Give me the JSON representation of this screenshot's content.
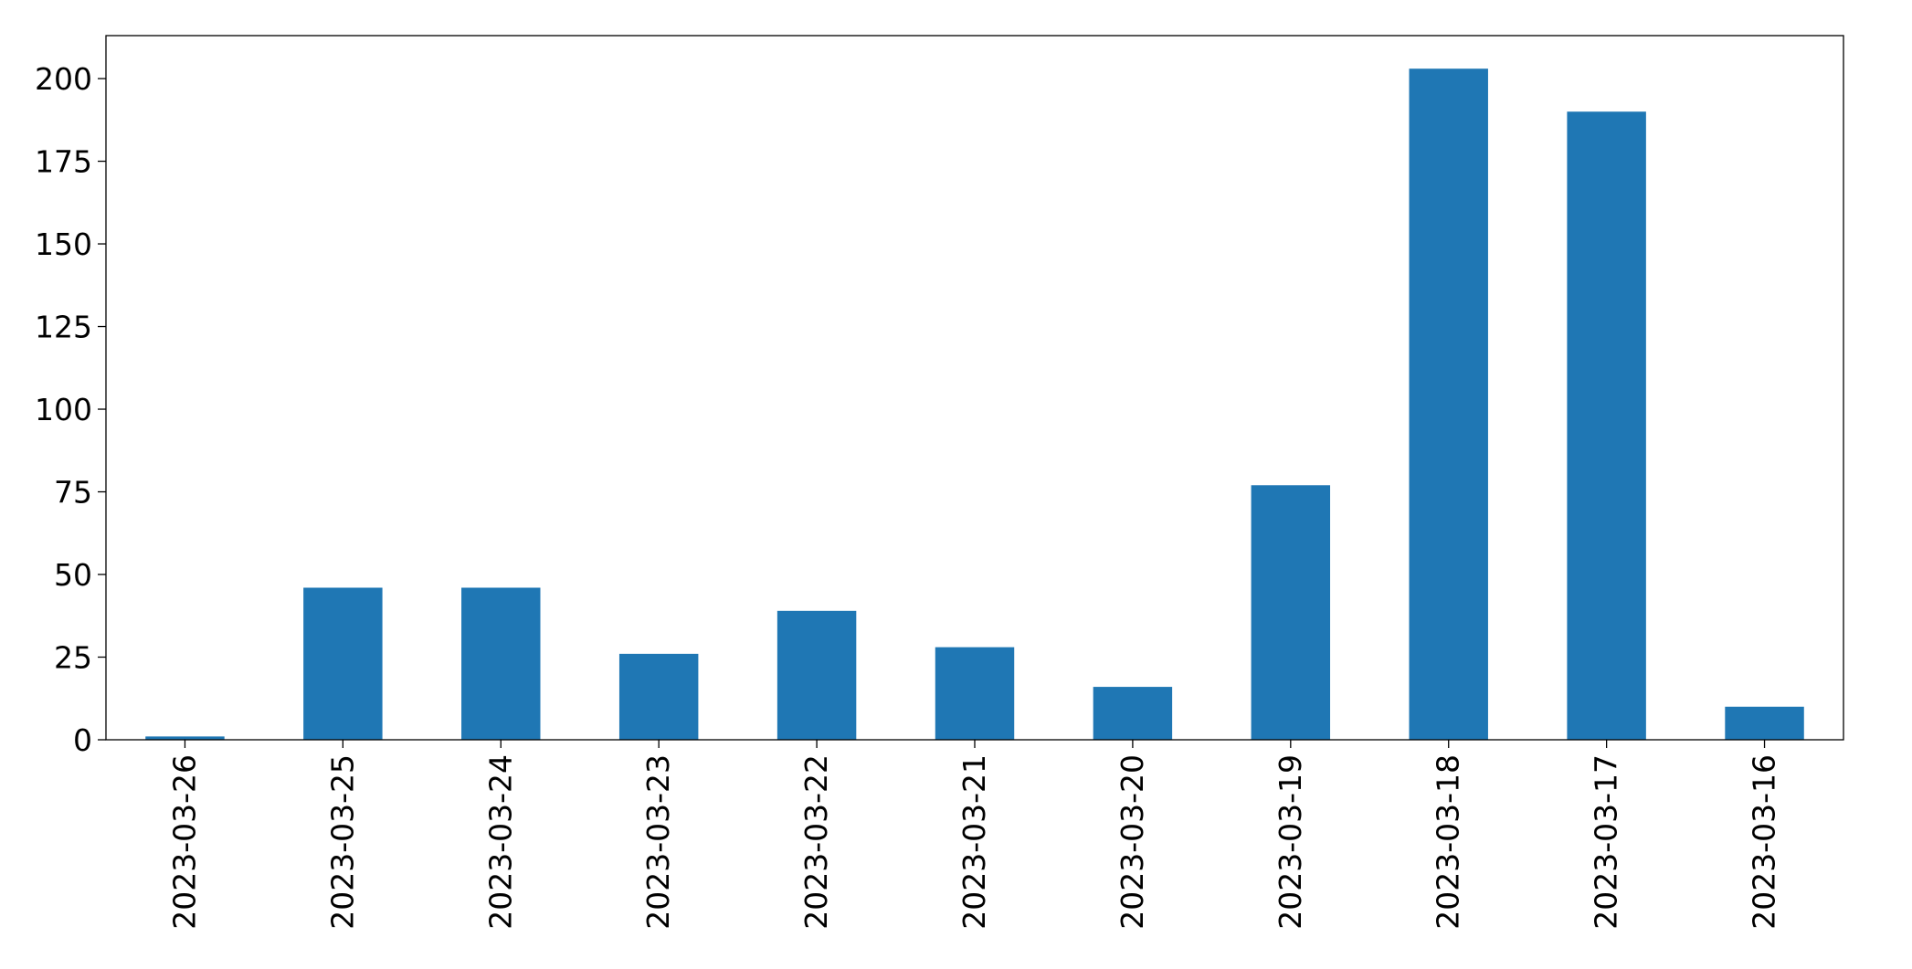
{
  "chart_data": {
    "type": "bar",
    "categories": [
      "2023-03-26",
      "2023-03-25",
      "2023-03-24",
      "2023-03-23",
      "2023-03-22",
      "2023-03-21",
      "2023-03-20",
      "2023-03-19",
      "2023-03-18",
      "2023-03-17",
      "2023-03-16"
    ],
    "values": [
      1,
      46,
      46,
      26,
      39,
      28,
      16,
      77,
      203,
      190,
      10
    ],
    "title": "",
    "xlabel": "",
    "ylabel": "",
    "ylim": [
      0,
      213
    ],
    "yticks": [
      0,
      25,
      50,
      75,
      100,
      125,
      150,
      175,
      200
    ],
    "ytick_labels": [
      "0",
      "25",
      "50",
      "75",
      "100",
      "125",
      "150",
      "175",
      "200"
    ],
    "grid": false,
    "legend": "none",
    "bar_color": "#1f77b4"
  }
}
